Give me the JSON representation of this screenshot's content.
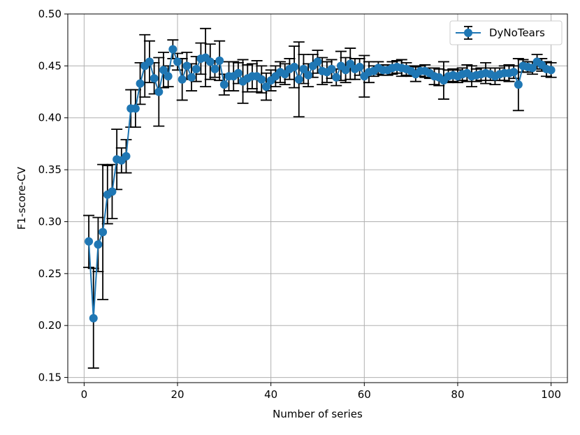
{
  "chart_data": {
    "type": "line",
    "xlabel": "Number of series",
    "ylabel": "F1-score-CV",
    "xlim": [
      -3.5,
      103.5
    ],
    "ylim": [
      0.145,
      0.5
    ],
    "x_ticks": [
      0,
      20,
      40,
      60,
      80,
      100
    ],
    "y_ticks": [
      0.15,
      0.2,
      0.25,
      0.3,
      0.35,
      0.4,
      0.45,
      0.5
    ],
    "x_tick_labels": [
      "0",
      "20",
      "40",
      "60",
      "80",
      "100"
    ],
    "y_tick_labels": [
      "0.15",
      "0.20",
      "0.25",
      "0.30",
      "0.35",
      "0.40",
      "0.45",
      "0.50"
    ],
    "grid": true,
    "legend_position": "top-right",
    "series": [
      {
        "name": "DyNoTears",
        "color": "#1f77b4",
        "errorbar_color": "#000000",
        "marker": "circle",
        "x": [
          1,
          2,
          3,
          4,
          5,
          6,
          7,
          8,
          9,
          10,
          11,
          12,
          13,
          14,
          15,
          16,
          17,
          18,
          19,
          20,
          21,
          22,
          23,
          24,
          25,
          26,
          27,
          28,
          29,
          30,
          31,
          32,
          33,
          34,
          35,
          36,
          37,
          38,
          39,
          40,
          41,
          42,
          43,
          44,
          45,
          46,
          47,
          48,
          49,
          50,
          51,
          52,
          53,
          54,
          55,
          56,
          57,
          58,
          59,
          60,
          61,
          62,
          63,
          64,
          65,
          66,
          67,
          68,
          69,
          70,
          71,
          72,
          73,
          74,
          75,
          76,
          77,
          78,
          79,
          80,
          81,
          82,
          83,
          84,
          85,
          86,
          87,
          88,
          89,
          90,
          91,
          92,
          93,
          94,
          95,
          96,
          97,
          98,
          99,
          100
        ],
        "y": [
          0.281,
          0.207,
          0.278,
          0.29,
          0.326,
          0.329,
          0.36,
          0.359,
          0.363,
          0.409,
          0.409,
          0.433,
          0.45,
          0.454,
          0.438,
          0.425,
          0.446,
          0.44,
          0.466,
          0.454,
          0.437,
          0.45,
          0.439,
          0.447,
          0.457,
          0.458,
          0.454,
          0.447,
          0.455,
          0.432,
          0.44,
          0.44,
          0.443,
          0.435,
          0.438,
          0.44,
          0.44,
          0.437,
          0.43,
          0.436,
          0.44,
          0.444,
          0.442,
          0.447,
          0.449,
          0.437,
          0.447,
          0.441,
          0.45,
          0.454,
          0.445,
          0.444,
          0.447,
          0.439,
          0.45,
          0.446,
          0.452,
          0.447,
          0.449,
          0.44,
          0.444,
          0.445,
          0.448,
          0.446,
          0.446,
          0.448,
          0.449,
          0.448,
          0.447,
          0.445,
          0.442,
          0.445,
          0.445,
          0.443,
          0.44,
          0.439,
          0.436,
          0.44,
          0.441,
          0.44,
          0.442,
          0.443,
          0.44,
          0.441,
          0.442,
          0.443,
          0.442,
          0.44,
          0.442,
          0.443,
          0.443,
          0.444,
          0.432,
          0.45,
          0.449,
          0.448,
          0.454,
          0.451,
          0.447,
          0.446
        ],
        "err": [
          0.025,
          0.048,
          0.026,
          0.065,
          0.028,
          0.026,
          0.029,
          0.012,
          0.016,
          0.018,
          0.018,
          0.02,
          0.03,
          0.02,
          0.015,
          0.033,
          0.017,
          0.01,
          0.009,
          0.008,
          0.02,
          0.013,
          0.013,
          0.012,
          0.015,
          0.028,
          0.017,
          0.008,
          0.019,
          0.01,
          0.014,
          0.014,
          0.01,
          0.021,
          0.013,
          0.012,
          0.015,
          0.013,
          0.013,
          0.01,
          0.01,
          0.01,
          0.01,
          0.01,
          0.02,
          0.036,
          0.014,
          0.011,
          0.011,
          0.011,
          0.013,
          0.01,
          0.009,
          0.008,
          0.014,
          0.012,
          0.015,
          0.01,
          0.008,
          0.02,
          0.01,
          0.005,
          0.006,
          0.005,
          0.005,
          0.006,
          0.006,
          0.008,
          0.006,
          0.005,
          0.007,
          0.005,
          0.006,
          0.005,
          0.008,
          0.008,
          0.018,
          0.006,
          0.006,
          0.006,
          0.006,
          0.008,
          0.01,
          0.006,
          0.006,
          0.01,
          0.006,
          0.008,
          0.006,
          0.007,
          0.008,
          0.006,
          0.025,
          0.006,
          0.005,
          0.006,
          0.007,
          0.006,
          0.007,
          0.007
        ]
      }
    ]
  }
}
